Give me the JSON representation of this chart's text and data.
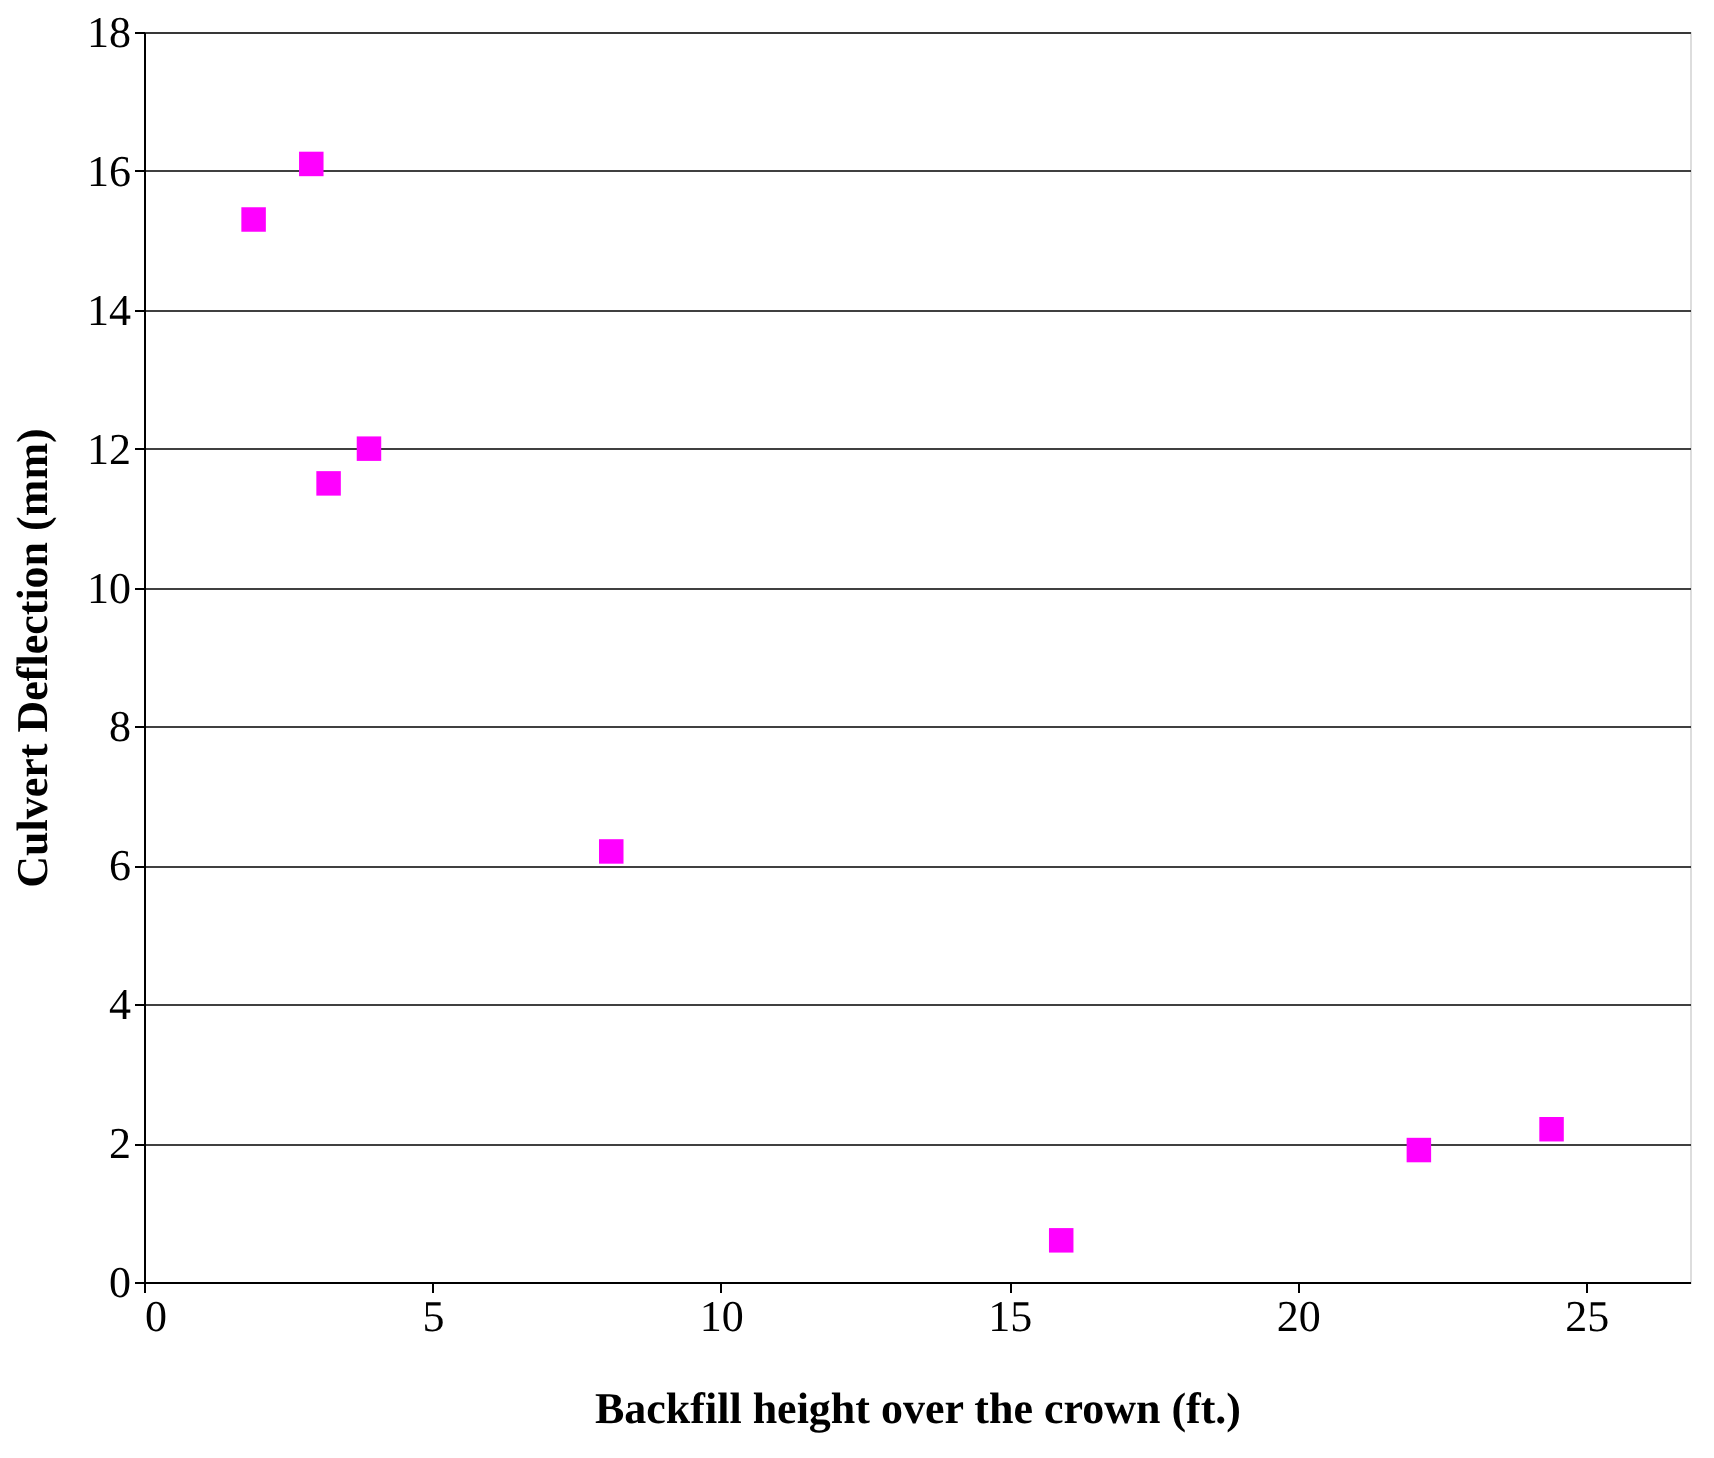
{
  "chart_data": {
    "type": "scatter",
    "xlabel": "Backfill height over the crown (ft.)",
    "ylabel": "Culvert Deflection (mm)",
    "x": [
      1.9,
      2.9,
      3.2,
      3.9,
      8.1,
      15.9,
      22.1,
      24.4
    ],
    "series": [
      {
        "color": "#ff00ff",
        "values": [
          15.3,
          16.1,
          11.5,
          12.0,
          6.2,
          0.6,
          1.9,
          2.2
        ]
      }
    ],
    "xlim": [
      0,
      26.8
    ],
    "xticks": [
      0,
      5,
      10,
      15,
      20,
      25
    ],
    "ylim": [
      0,
      18
    ],
    "yticks": [
      0,
      2,
      4,
      6,
      8,
      10,
      12,
      14,
      16,
      18
    ],
    "grid": "y",
    "marker": "square"
  }
}
